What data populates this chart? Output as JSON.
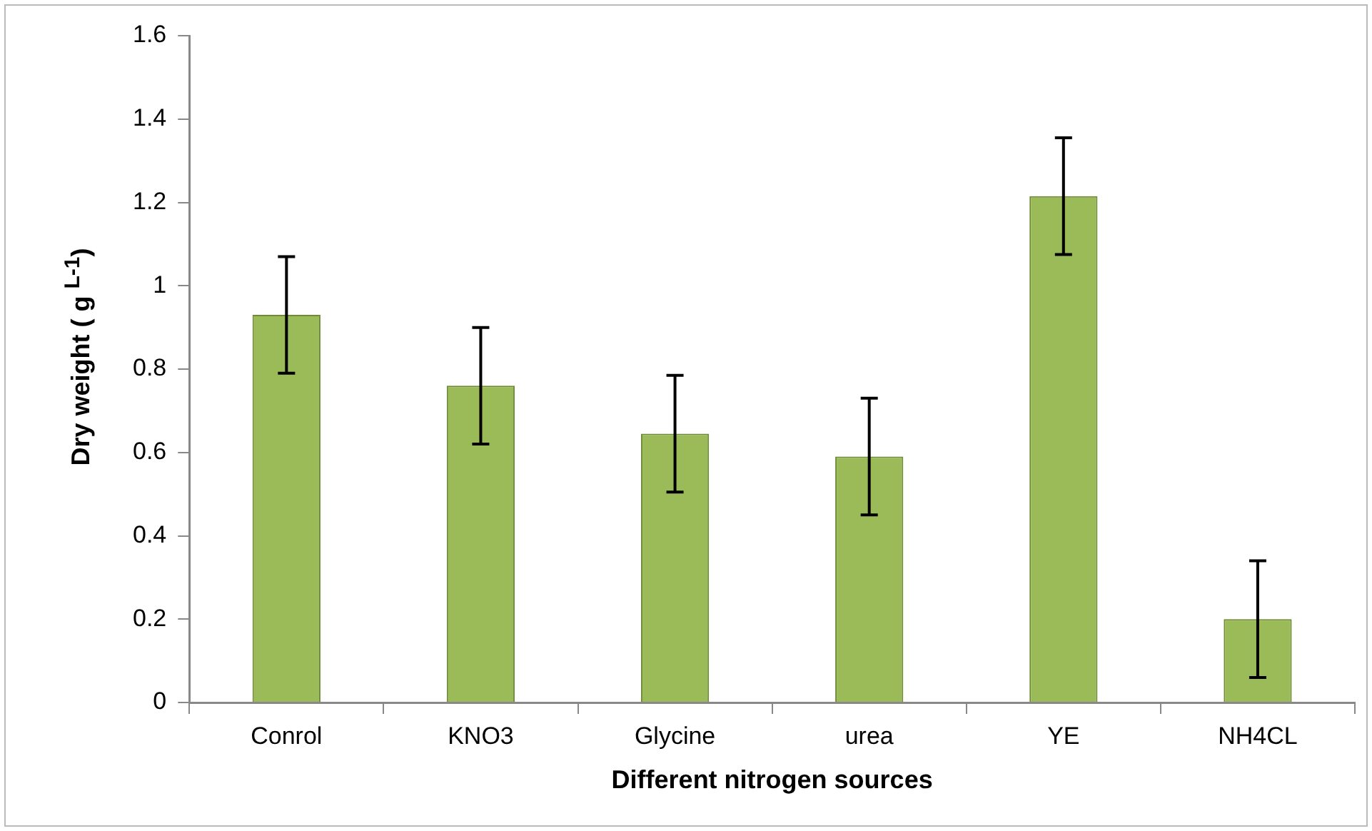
{
  "chart_data": {
    "type": "bar",
    "xlabel": "Different nitrogen sources",
    "ylabel": "Dry weight ( g $^{L-1}$)",
    "categories": [
      "Conrol",
      "KNO3",
      "Glycine",
      "urea",
      "YE",
      "NH4CL"
    ],
    "values": [
      0.93,
      0.76,
      0.645,
      0.59,
      1.215,
      0.2
    ],
    "errors": [
      0.14,
      0.14,
      0.14,
      0.14,
      0.14,
      0.14
    ],
    "color": "#9bbb59",
    "ylim": [
      0,
      1.6
    ],
    "yticks": [
      0,
      0.2,
      0.4,
      0.6,
      0.8,
      1,
      1.2,
      1.4,
      1.6
    ],
    "grid": false,
    "legend": false
  }
}
